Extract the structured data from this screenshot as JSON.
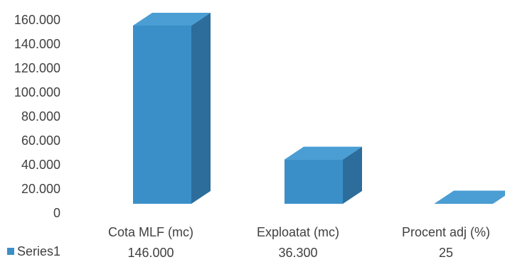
{
  "chart_data": {
    "type": "bar",
    "style": "3d-column",
    "categories": [
      "Cota MLF (mc)",
      "Exploatat (mc)",
      "Procent adj (%)"
    ],
    "series": [
      {
        "name": "Series1",
        "values": [
          146000,
          36300,
          25
        ],
        "value_labels": [
          "146.000",
          "36.300",
          "25"
        ],
        "color": "#3b8fc9"
      }
    ],
    "y_ticks": [
      "0",
      "20.000",
      "40.000",
      "60.000",
      "80.000",
      "100.000",
      "120.000",
      "140.000",
      "160.000"
    ],
    "ylim": [
      0,
      160000
    ],
    "grid": false,
    "legend": "bottom-left, data table"
  }
}
